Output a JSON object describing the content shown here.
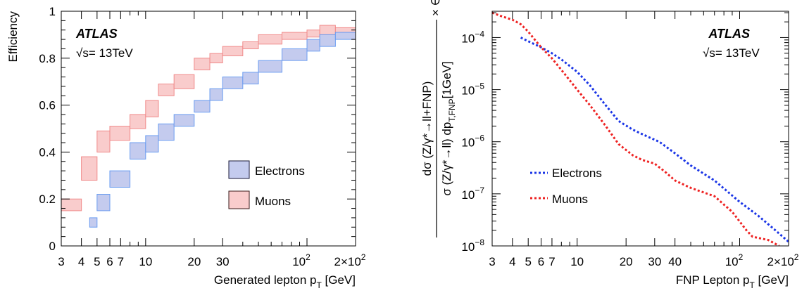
{
  "colors": {
    "electron_fill": "#c4cbee",
    "electron_edge": "#6a9cf0",
    "muon_fill": "#f9cccc",
    "muon_edge": "#f08a8a",
    "electron_line": "#1a35e6",
    "muon_line": "#ee2222"
  },
  "chart_data": [
    {
      "type": "area",
      "ylabel": "Efficiency",
      "xlabel_main": "Generated lepton p",
      "xlabel_sub": "T",
      "xlabel_unit": " [GeV]",
      "experiment": "ATLAS",
      "energy_label": "√s= 13TeV",
      "xscale": "log",
      "xlim": [
        3,
        200
      ],
      "ylim": [
        0,
        1
      ],
      "grid": false,
      "legend_position": "bottom-right",
      "xticks_major": [
        {
          "v": 3,
          "label": "3"
        },
        {
          "v": 4,
          "label": "4"
        },
        {
          "v": 5,
          "label": "5"
        },
        {
          "v": 6,
          "label": "6"
        },
        {
          "v": 7,
          "label": "7"
        },
        {
          "v": 10,
          "label": "10"
        },
        {
          "v": 20,
          "label": "20"
        },
        {
          "v": 30,
          "label": "30"
        },
        {
          "v": 100,
          "label": "10",
          "exp": "2"
        },
        {
          "v": 200,
          "label": "2×10",
          "exp": "2"
        }
      ],
      "yticks": [
        {
          "v": 0,
          "label": "0"
        },
        {
          "v": 0.2,
          "label": "0.2"
        },
        {
          "v": 0.4,
          "label": "0.4"
        },
        {
          "v": 0.6,
          "label": "0.6"
        },
        {
          "v": 0.8,
          "label": "0.8"
        },
        {
          "v": 1,
          "label": "1"
        }
      ],
      "series": [
        {
          "name": "Electrons",
          "bins": [
            {
              "x0": 4.5,
              "x1": 5,
              "lo": 0.08,
              "hi": 0.12
            },
            {
              "x0": 5,
              "x1": 6,
              "lo": 0.15,
              "hi": 0.22
            },
            {
              "x0": 6,
              "x1": 8,
              "lo": 0.25,
              "hi": 0.32
            },
            {
              "x0": 8,
              "x1": 10,
              "lo": 0.37,
              "hi": 0.44
            },
            {
              "x0": 10,
              "x1": 12,
              "lo": 0.4,
              "hi": 0.47
            },
            {
              "x0": 12,
              "x1": 15,
              "lo": 0.45,
              "hi": 0.52
            },
            {
              "x0": 15,
              "x1": 20,
              "lo": 0.51,
              "hi": 0.56
            },
            {
              "x0": 20,
              "x1": 25,
              "lo": 0.57,
              "hi": 0.62
            },
            {
              "x0": 25,
              "x1": 30,
              "lo": 0.62,
              "hi": 0.67
            },
            {
              "x0": 30,
              "x1": 40,
              "lo": 0.67,
              "hi": 0.72
            },
            {
              "x0": 40,
              "x1": 50,
              "lo": 0.69,
              "hi": 0.74
            },
            {
              "x0": 50,
              "x1": 70,
              "lo": 0.74,
              "hi": 0.79
            },
            {
              "x0": 70,
              "x1": 100,
              "lo": 0.79,
              "hi": 0.84
            },
            {
              "x0": 100,
              "x1": 120,
              "lo": 0.83,
              "hi": 0.88
            },
            {
              "x0": 120,
              "x1": 150,
              "lo": 0.85,
              "hi": 0.9
            },
            {
              "x0": 150,
              "x1": 200,
              "lo": 0.88,
              "hi": 0.91
            }
          ]
        },
        {
          "name": "Muons",
          "bins": [
            {
              "x0": 3,
              "x1": 4,
              "lo": 0.15,
              "hi": 0.2
            },
            {
              "x0": 4,
              "x1": 5,
              "lo": 0.28,
              "hi": 0.38
            },
            {
              "x0": 5,
              "x1": 6,
              "lo": 0.4,
              "hi": 0.49
            },
            {
              "x0": 6,
              "x1": 8,
              "lo": 0.45,
              "hi": 0.51
            },
            {
              "x0": 8,
              "x1": 10,
              "lo": 0.5,
              "hi": 0.56
            },
            {
              "x0": 10,
              "x1": 12,
              "lo": 0.55,
              "hi": 0.62
            },
            {
              "x0": 12,
              "x1": 15,
              "lo": 0.64,
              "hi": 0.69
            },
            {
              "x0": 15,
              "x1": 20,
              "lo": 0.67,
              "hi": 0.73
            },
            {
              "x0": 20,
              "x1": 25,
              "lo": 0.75,
              "hi": 0.8
            },
            {
              "x0": 25,
              "x1": 30,
              "lo": 0.78,
              "hi": 0.82
            },
            {
              "x0": 30,
              "x1": 40,
              "lo": 0.81,
              "hi": 0.85
            },
            {
              "x0": 40,
              "x1": 50,
              "lo": 0.84,
              "hi": 0.87
            },
            {
              "x0": 50,
              "x1": 70,
              "lo": 0.86,
              "hi": 0.9
            },
            {
              "x0": 70,
              "x1": 100,
              "lo": 0.88,
              "hi": 0.91
            },
            {
              "x0": 100,
              "x1": 120,
              "lo": 0.89,
              "hi": 0.92
            },
            {
              "x0": 120,
              "x1": 150,
              "lo": 0.9,
              "hi": 0.94
            },
            {
              "x0": 150,
              "x1": 200,
              "lo": 0.89,
              "hi": 0.93
            }
          ]
        }
      ]
    },
    {
      "type": "line",
      "ylabel_num": "dσ (Z/γ*→ll+FNP)",
      "ylabel_den_main": "σ (Z/γ*→ll) dp",
      "ylabel_den_sub": "T,FNP",
      "ylabel_den_tail": "[1GeV]",
      "ylabel_times": "× ∈",
      "xlabel_main": "FNP Lepton p",
      "xlabel_sub": "T",
      "xlabel_unit": " [GeV]",
      "experiment": "ATLAS",
      "energy_label": "√s= 13TeV",
      "xscale": "log",
      "yscale": "log",
      "xlim": [
        3,
        200
      ],
      "ylim": [
        1e-08,
        0.00032
      ],
      "grid": false,
      "legend_position": "bottom-left",
      "xticks_major": [
        {
          "v": 3,
          "label": "3"
        },
        {
          "v": 4,
          "label": "4"
        },
        {
          "v": 5,
          "label": "5"
        },
        {
          "v": 6,
          "label": "6"
        },
        {
          "v": 7,
          "label": "7"
        },
        {
          "v": 10,
          "label": "10"
        },
        {
          "v": 20,
          "label": "20"
        },
        {
          "v": 30,
          "label": "30"
        },
        {
          "v": 40,
          "label": "40"
        },
        {
          "v": 100,
          "label": "10",
          "exp": "2"
        },
        {
          "v": 200,
          "label": "2×10",
          "exp": "2"
        }
      ],
      "yticks": [
        {
          "v": 1e-08,
          "label": "10",
          "exp": "−8"
        },
        {
          "v": 1e-07,
          "label": "10",
          "exp": "−7"
        },
        {
          "v": 1e-06,
          "label": "10",
          "exp": "−6"
        },
        {
          "v": 1e-05,
          "label": "10",
          "exp": "−5"
        },
        {
          "v": 0.0001,
          "label": "10",
          "exp": "−4"
        }
      ],
      "series": [
        {
          "name": "Electrons",
          "points": [
            [
              4.5,
              0.0001
            ],
            [
              5,
              8.5e-05
            ],
            [
              6,
              6.5e-05
            ],
            [
              7,
              5e-05
            ],
            [
              8,
              3.8e-05
            ],
            [
              10,
              2.2e-05
            ],
            [
              12,
              1.2e-05
            ],
            [
              15,
              5e-06
            ],
            [
              18,
              2.5e-06
            ],
            [
              22,
              1.7e-06
            ],
            [
              28,
              1.2e-06
            ],
            [
              32,
              1e-06
            ],
            [
              40,
              6e-07
            ],
            [
              50,
              3.5e-07
            ],
            [
              70,
              1.8e-07
            ],
            [
              100,
              7e-08
            ],
            [
              130,
              3.8e-08
            ],
            [
              160,
              2.2e-08
            ],
            [
              200,
              1.2e-08
            ]
          ]
        },
        {
          "name": "Muons",
          "points": [
            [
              3,
              0.0003
            ],
            [
              3.5,
              0.00025
            ],
            [
              4,
              0.00022
            ],
            [
              4.5,
              0.00018
            ],
            [
              5,
              0.00013
            ],
            [
              5.5,
              9e-05
            ],
            [
              6,
              6.5e-05
            ],
            [
              7,
              4e-05
            ],
            [
              8,
              2.4e-05
            ],
            [
              10,
              1e-05
            ],
            [
              12,
              5e-06
            ],
            [
              15,
              2e-06
            ],
            [
              18,
              9e-07
            ],
            [
              22,
              5.5e-07
            ],
            [
              25,
              4.5e-07
            ],
            [
              30,
              3.8e-07
            ],
            [
              35,
              2.6e-07
            ],
            [
              40,
              1.8e-07
            ],
            [
              50,
              1.3e-07
            ],
            [
              70,
              9e-08
            ],
            [
              90,
              4.5e-08
            ],
            [
              110,
              2e-08
            ],
            [
              120,
              1.5e-08
            ],
            [
              150,
              1.3e-08
            ],
            [
              175,
              1e-08
            ]
          ]
        }
      ]
    }
  ]
}
